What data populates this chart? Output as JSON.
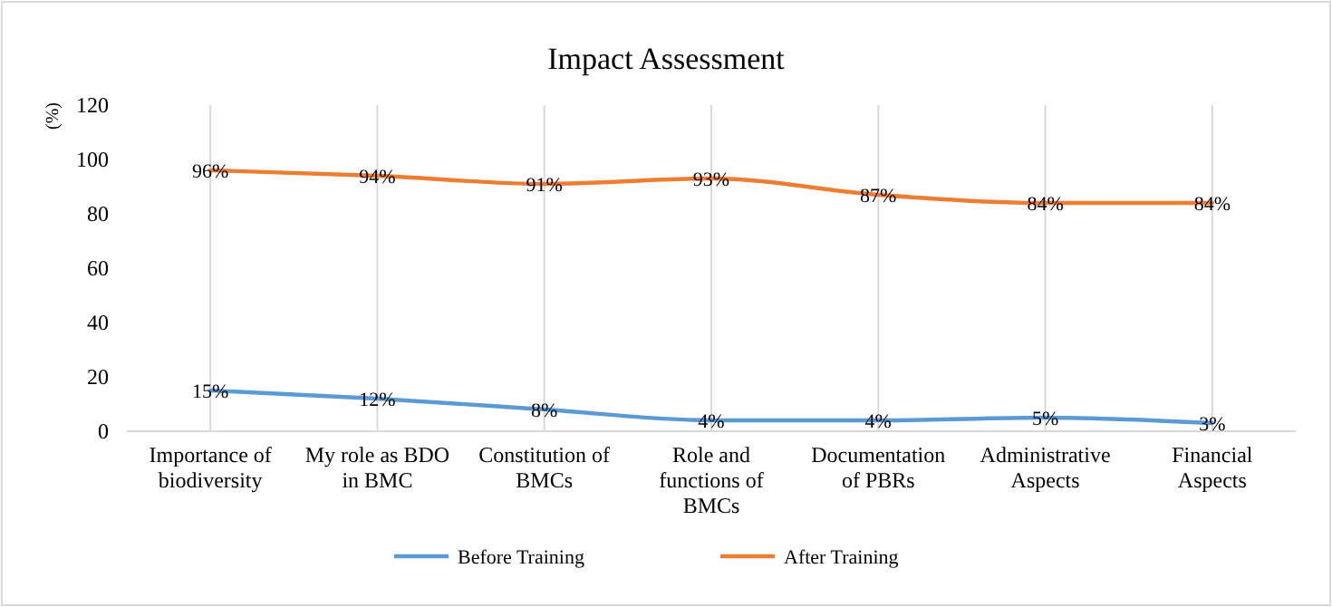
{
  "chart_data": {
    "type": "line",
    "title": "Impact Assessment",
    "ylabel": "(%)",
    "categories": [
      "Importance of biodiversity",
      "My role as BDO in BMC",
      "Constitution of BMCs",
      "Role and functions of BMCs",
      "Documentation of PBRs",
      "Administrative Aspects",
      "Financial Aspects"
    ],
    "series": [
      {
        "name": "Before Training",
        "color": "#5b9bd5",
        "values": [
          15,
          12,
          8,
          4,
          4,
          5,
          3
        ],
        "value_labels": [
          "15%",
          "12%",
          "8%",
          "4%",
          "4%",
          "5%",
          "3%"
        ]
      },
      {
        "name": "After Training",
        "color": "#ed7d31",
        "values": [
          96,
          94,
          91,
          93,
          87,
          84,
          84
        ],
        "value_labels": [
          "96%",
          "94%",
          "91%",
          "93%",
          "87%",
          "84%",
          "84%"
        ]
      }
    ],
    "ylim": [
      0,
      120
    ],
    "yticks": [
      0,
      20,
      40,
      60,
      80,
      100,
      120
    ],
    "grid": "x",
    "legend": "bottom",
    "marker": "none",
    "line_style": "solid"
  }
}
